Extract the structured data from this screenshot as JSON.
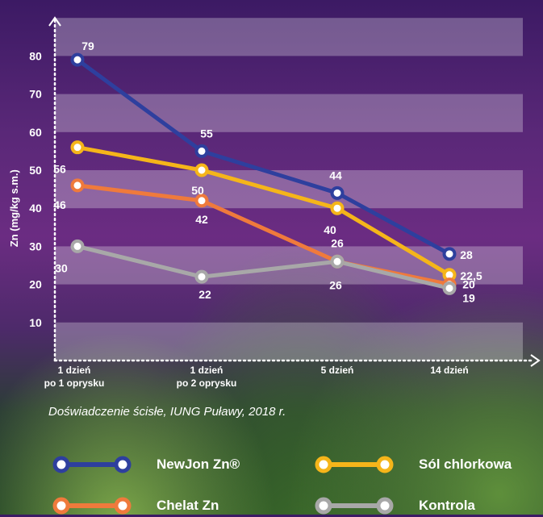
{
  "chart_data": {
    "type": "line",
    "ylabel": "Zn (mg/kg s.m.)",
    "xlabel": "",
    "ylim": [
      0,
      90
    ],
    "yticks": [
      10,
      20,
      30,
      40,
      50,
      60,
      70,
      80
    ],
    "grid": "alternating horizontal bands",
    "categories": [
      "1 dzień\npo 1 oprysku",
      "1 dzień\npo 2 oprysku",
      "5 dzień",
      "14 dzień"
    ],
    "series": [
      {
        "name": "NewJon Zn®",
        "color": "#2e3f9e",
        "values": [
          79,
          55,
          44,
          28
        ],
        "labels": [
          "79",
          "55",
          "44",
          "28"
        ]
      },
      {
        "name": "Sól chlorkowa",
        "color": "#f5b51a",
        "values": [
          56,
          50,
          40,
          22.5
        ],
        "labels": [
          "56",
          "50",
          "40",
          "22,5"
        ]
      },
      {
        "name": "Chelat Zn",
        "color": "#ef7a3c",
        "values": [
          46,
          42,
          26,
          20
        ],
        "labels": [
          "46",
          "42",
          "26",
          "20"
        ]
      },
      {
        "name": "Kontrola",
        "color": "#a8a8a8",
        "values": [
          30,
          22,
          26,
          19
        ],
        "labels": [
          "30",
          "22",
          "26",
          "19"
        ]
      }
    ]
  },
  "source_note": "Doświadczenie ścisłe, IUNG Puławy, 2018 r.",
  "legend": [
    {
      "label": "NewJon Zn®",
      "color": "#2e3f9e"
    },
    {
      "label": "Sól chlorkowa",
      "color": "#f5b51a"
    },
    {
      "label": "Chelat Zn",
      "color": "#ef7a3c"
    },
    {
      "label": "Kontrola",
      "color": "#a8a8a8"
    }
  ]
}
